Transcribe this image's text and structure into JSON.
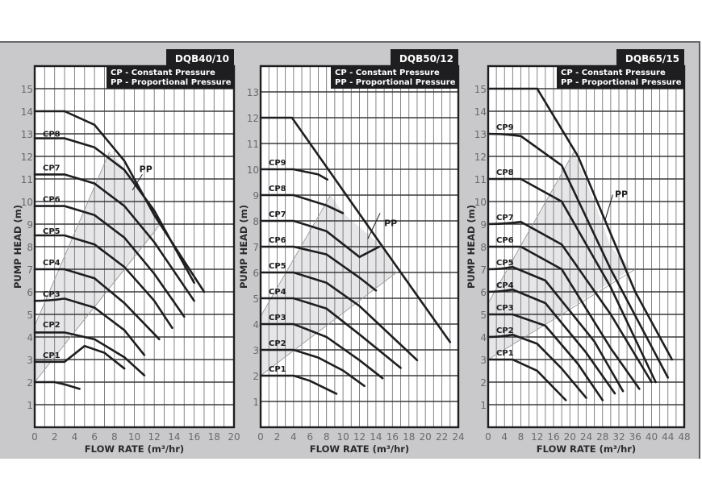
{
  "colors": {
    "background": "#c9c9cb",
    "plot": "#ffffff",
    "grid": "#3a3a3c",
    "curve": "#1e1e20",
    "shade": "#e6e6e8",
    "label_box": "#1e1e20",
    "tick_text": "#6a6a6c"
  },
  "chart_data": [
    {
      "type": "line",
      "title": "DQB40/10",
      "legend": [
        "CP - Constant Pressure",
        "PP - Proportional Pressure"
      ],
      "xlabel": "FLOW RATE (m³/hr)",
      "ylabel": "PUMP HEAD (m)",
      "xlim": [
        0,
        20
      ],
      "ylim": [
        0,
        16
      ],
      "xticks": [
        0,
        2,
        4,
        6,
        8,
        10,
        12,
        14,
        16,
        18,
        20
      ],
      "yticks": [
        1,
        2,
        3,
        4,
        5,
        6,
        7,
        8,
        9,
        10,
        11,
        12,
        13,
        14,
        15
      ],
      "grid": true,
      "pp_label": "PP",
      "cp_labels": [
        {
          "name": "CP1",
          "head": 2.9
        },
        {
          "name": "CP2",
          "head": 4.25
        },
        {
          "name": "CP3",
          "head": 5.6
        },
        {
          "name": "CP4",
          "head": 7.0
        },
        {
          "name": "CP5",
          "head": 8.4
        },
        {
          "name": "CP6",
          "head": 9.8
        },
        {
          "name": "CP7",
          "head": 11.2
        },
        {
          "name": "CP8",
          "head": 12.7
        }
      ],
      "series": [
        {
          "name": "curve-2.0",
          "points": [
            [
              0,
              2.0
            ],
            [
              2,
              2.0
            ],
            [
              3,
              1.9
            ],
            [
              4.5,
              1.7
            ]
          ]
        },
        {
          "name": "curve-CP1",
          "points": [
            [
              0,
              2.9
            ],
            [
              3,
              2.9
            ],
            [
              5,
              3.6
            ],
            [
              7,
              3.3
            ],
            [
              9,
              2.6
            ]
          ]
        },
        {
          "name": "curve-CP2",
          "points": [
            [
              0,
              4.2
            ],
            [
              3,
              4.2
            ],
            [
              6,
              3.9
            ],
            [
              9,
              3.1
            ],
            [
              11,
              2.3
            ]
          ]
        },
        {
          "name": "curve-CP3",
          "points": [
            [
              0,
              5.6
            ],
            [
              3,
              5.7
            ],
            [
              6,
              5.3
            ],
            [
              9,
              4.3
            ],
            [
              11,
              3.2
            ]
          ]
        },
        {
          "name": "curve-CP4",
          "points": [
            [
              0,
              7.0
            ],
            [
              3,
              7.0
            ],
            [
              6,
              6.6
            ],
            [
              9,
              5.5
            ],
            [
              12.5,
              3.9
            ]
          ]
        },
        {
          "name": "curve-CP5",
          "points": [
            [
              0,
              8.5
            ],
            [
              3,
              8.5
            ],
            [
              6,
              8.1
            ],
            [
              9,
              7.1
            ],
            [
              12,
              5.6
            ],
            [
              13.8,
              4.4
            ]
          ]
        },
        {
          "name": "curve-CP6",
          "points": [
            [
              0,
              9.8
            ],
            [
              3,
              9.8
            ],
            [
              6,
              9.4
            ],
            [
              9,
              8.4
            ],
            [
              12,
              6.8
            ],
            [
              15,
              4.9
            ]
          ]
        },
        {
          "name": "curve-CP7",
          "points": [
            [
              0,
              11.2
            ],
            [
              3,
              11.2
            ],
            [
              6,
              10.8
            ],
            [
              9,
              9.8
            ],
            [
              12,
              8.2
            ],
            [
              16,
              5.6
            ]
          ]
        },
        {
          "name": "curve-CP8",
          "points": [
            [
              0,
              12.8
            ],
            [
              3,
              12.8
            ],
            [
              6,
              12.4
            ],
            [
              9,
              11.4
            ],
            [
              12,
              9.6
            ],
            [
              16,
              6.4
            ]
          ]
        },
        {
          "name": "curve-max",
          "points": [
            [
              0,
              14.0
            ],
            [
              3,
              14.0
            ],
            [
              6,
              13.4
            ],
            [
              9,
              11.8
            ],
            [
              12,
              9.4
            ],
            [
              17,
              6.0
            ]
          ]
        }
      ],
      "pp_region": [
        [
          0,
          2
        ],
        [
          0,
          4.5
        ],
        [
          7.5,
          12.2
        ],
        [
          10,
          11
        ],
        [
          12.5,
          9
        ],
        [
          12,
          8.6
        ]
      ],
      "pp_line_upper": [
        [
          0,
          4.5
        ],
        [
          7.5,
          12.2
        ]
      ],
      "pp_line_lower": [
        [
          0,
          2
        ],
        [
          12.6,
          9
        ]
      ],
      "pp_label_pos": [
        10.5,
        11.3
      ],
      "pp_pointer": [
        [
          9.8,
          10.5
        ],
        [
          10.8,
          11.2
        ]
      ]
    },
    {
      "type": "line",
      "title": "DQB50/12",
      "legend": [
        "CP - Constant Pressure",
        "PP - Proportional Pressure"
      ],
      "xlabel": "FLOW RATE (m³/hr)",
      "ylabel": "PUMP HEAD (m)",
      "xlim": [
        0,
        24
      ],
      "ylim": [
        0,
        14
      ],
      "xticks": [
        0,
        2,
        4,
        6,
        8,
        10,
        12,
        14,
        16,
        18,
        20,
        22,
        24
      ],
      "yticks": [
        1,
        2,
        3,
        4,
        5,
        6,
        7,
        8,
        9,
        10,
        11,
        12,
        13
      ],
      "grid": true,
      "pp_label": "PP",
      "cp_labels": [
        {
          "name": "CP1",
          "head": 2.0
        },
        {
          "name": "CP2",
          "head": 3.0
        },
        {
          "name": "CP3",
          "head": 4.0
        },
        {
          "name": "CP4",
          "head": 5.0
        },
        {
          "name": "CP5",
          "head": 6.0
        },
        {
          "name": "CP6",
          "head": 7.0
        },
        {
          "name": "CP7",
          "head": 8.0
        },
        {
          "name": "CP8",
          "head": 9.0
        },
        {
          "name": "CP9",
          "head": 10.0
        }
      ],
      "series": [
        {
          "name": "curve-CP1",
          "points": [
            [
              0,
              2.0
            ],
            [
              4,
              2.0
            ],
            [
              6,
              1.8
            ],
            [
              9.2,
              1.3
            ]
          ]
        },
        {
          "name": "curve-CP2",
          "points": [
            [
              0,
              3.0
            ],
            [
              4,
              3.0
            ],
            [
              7,
              2.7
            ],
            [
              10,
              2.2
            ],
            [
              12.6,
              1.6
            ]
          ]
        },
        {
          "name": "curve-CP3",
          "points": [
            [
              0,
              4.0
            ],
            [
              4,
              4.0
            ],
            [
              8,
              3.5
            ],
            [
              12,
              2.6
            ],
            [
              14.8,
              1.9
            ]
          ]
        },
        {
          "name": "curve-CP4",
          "points": [
            [
              0,
              5.0
            ],
            [
              4,
              5.0
            ],
            [
              8,
              4.6
            ],
            [
              12,
              3.6
            ],
            [
              17,
              2.3
            ]
          ]
        },
        {
          "name": "curve-CP5",
          "points": [
            [
              0,
              6.0
            ],
            [
              4,
              6.0
            ],
            [
              8,
              5.6
            ],
            [
              12,
              4.7
            ],
            [
              16,
              3.5
            ],
            [
              19,
              2.6
            ]
          ]
        },
        {
          "name": "curve-CP6",
          "points": [
            [
              0,
              7.0
            ],
            [
              4,
              7.0
            ],
            [
              8,
              6.7
            ],
            [
              12,
              5.8
            ],
            [
              14,
              5.3
            ]
          ]
        },
        {
          "name": "curve-CP7",
          "points": [
            [
              0,
              8.0
            ],
            [
              4,
              8.0
            ],
            [
              8,
              7.6
            ],
            [
              12,
              6.6
            ],
            [
              14.4,
              7.0
            ]
          ]
        },
        {
          "name": "curve-CP8",
          "points": [
            [
              0,
              9.0
            ],
            [
              4,
              9.0
            ],
            [
              8,
              8.6
            ],
            [
              10,
              8.3
            ]
          ]
        },
        {
          "name": "curve-CP9",
          "points": [
            [
              0,
              10.0
            ],
            [
              4,
              10.0
            ],
            [
              7,
              9.8
            ],
            [
              8.1,
              9.6
            ]
          ]
        },
        {
          "name": "curve-max",
          "points": [
            [
              0,
              12
            ],
            [
              3.8,
              12
            ],
            [
              14.8,
              7.0
            ],
            [
              23,
              3.3
            ]
          ]
        }
      ],
      "pp_region": [
        [
          0,
          2
        ],
        [
          0,
          4.3
        ],
        [
          8.5,
          9.0
        ],
        [
          10,
          8.3
        ],
        [
          14.8,
          7.0
        ],
        [
          16.5,
          6.0
        ],
        [
          0,
          2
        ]
      ],
      "pp_line_upper": [
        [
          0,
          4.3
        ],
        [
          8.5,
          9.0
        ]
      ],
      "pp_line_lower": [
        [
          0,
          2
        ],
        [
          16.5,
          6.0
        ]
      ],
      "pp_label_pos": [
        15.0,
        7.8
      ],
      "pp_pointer": [
        [
          13.0,
          7.3
        ],
        [
          14.5,
          8.3
        ]
      ]
    },
    {
      "type": "line",
      "title": "DQB65/15",
      "legend": [
        "CP - Constant Pressure",
        "PP - Proportional Pressure"
      ],
      "xlabel": "FLOW RATE (m³/hr)",
      "ylabel": "PUMP HEAD (m)",
      "xlim": [
        0,
        48
      ],
      "ylim": [
        0,
        16
      ],
      "xticks": [
        0,
        4,
        8,
        12,
        16,
        20,
        24,
        28,
        32,
        36,
        40,
        44,
        48
      ],
      "yticks": [
        1,
        2,
        3,
        4,
        5,
        6,
        7,
        8,
        9,
        10,
        11,
        12,
        13,
        14,
        15
      ],
      "grid": true,
      "pp_label": "PP",
      "cp_labels": [
        {
          "name": "CP1",
          "head": 3.0
        },
        {
          "name": "CP2",
          "head": 4.0
        },
        {
          "name": "CP3",
          "head": 5.0
        },
        {
          "name": "CP4",
          "head": 6.0
        },
        {
          "name": "CP5",
          "head": 7.0
        },
        {
          "name": "CP6",
          "head": 8.0
        },
        {
          "name": "CP7",
          "head": 9.0
        },
        {
          "name": "CP8",
          "head": 11.0
        },
        {
          "name": "CP9",
          "head": 13.0
        }
      ],
      "series": [
        {
          "name": "curve-CP1",
          "points": [
            [
              0,
              3.0
            ],
            [
              6,
              3.0
            ],
            [
              12,
              2.5
            ],
            [
              19,
              1.2
            ]
          ]
        },
        {
          "name": "curve-CP2",
          "points": [
            [
              0,
              4.0
            ],
            [
              6,
              4.1
            ],
            [
              12,
              3.7
            ],
            [
              18,
              2.6
            ],
            [
              24,
              1.3
            ]
          ]
        },
        {
          "name": "curve-CP3",
          "points": [
            [
              0,
              5.0
            ],
            [
              6,
              5.0
            ],
            [
              14,
              4.5
            ],
            [
              22,
              2.8
            ],
            [
              28,
              1.2
            ]
          ]
        },
        {
          "name": "curve-CP4",
          "points": [
            [
              0,
              6.0
            ],
            [
              6,
              6.1
            ],
            [
              14,
              5.5
            ],
            [
              24,
              3.3
            ],
            [
              31,
              1.5
            ]
          ]
        },
        {
          "name": "curve-CP5",
          "points": [
            [
              0,
              7.0
            ],
            [
              6,
              7.1
            ],
            [
              14,
              6.5
            ],
            [
              26,
              3.8
            ],
            [
              33,
              1.6
            ]
          ]
        },
        {
          "name": "curve-CP6",
          "points": [
            [
              0,
              8.0
            ],
            [
              8,
              8.0
            ],
            [
              18,
              7.0
            ],
            [
              30,
              3.5
            ],
            [
              37,
              1.7
            ]
          ]
        },
        {
          "name": "curve-CP7",
          "points": [
            [
              0,
              9.0
            ],
            [
              8,
              9.1
            ],
            [
              18,
              8.1
            ],
            [
              30,
              5.0
            ],
            [
              40,
              2.0
            ]
          ]
        },
        {
          "name": "curve-CP8",
          "points": [
            [
              0,
              11.0
            ],
            [
              8,
              11.0
            ],
            [
              18,
              10.0
            ],
            [
              30,
              6.2
            ],
            [
              41,
              2.0
            ]
          ]
        },
        {
          "name": "curve-CP9",
          "points": [
            [
              0,
              13.0
            ],
            [
              8,
              12.9
            ],
            [
              18,
              11.6
            ],
            [
              30,
              7.0
            ],
            [
              44,
              2.2
            ]
          ]
        },
        {
          "name": "curve-max",
          "points": [
            [
              0,
              15.0
            ],
            [
              12,
              15.0
            ],
            [
              22,
              12.0
            ],
            [
              36,
              6.0
            ],
            [
              45,
              3.0
            ]
          ]
        }
      ],
      "pp_region": [
        [
          0,
          3
        ],
        [
          0,
          5.5
        ],
        [
          21,
          12.2
        ],
        [
          26,
          10.0
        ],
        [
          30,
          8.0
        ],
        [
          35,
          7.0
        ],
        [
          0,
          3
        ]
      ],
      "pp_line_upper": [
        [
          0,
          5.5
        ],
        [
          21,
          12.2
        ]
      ],
      "pp_line_lower": [
        [
          0,
          3
        ],
        [
          36,
          7.0
        ]
      ],
      "pp_label_pos": [
        31.0,
        10.2
      ],
      "pp_pointer": [
        [
          28.5,
          9.1
        ],
        [
          30.5,
          10.3
        ]
      ]
    }
  ]
}
